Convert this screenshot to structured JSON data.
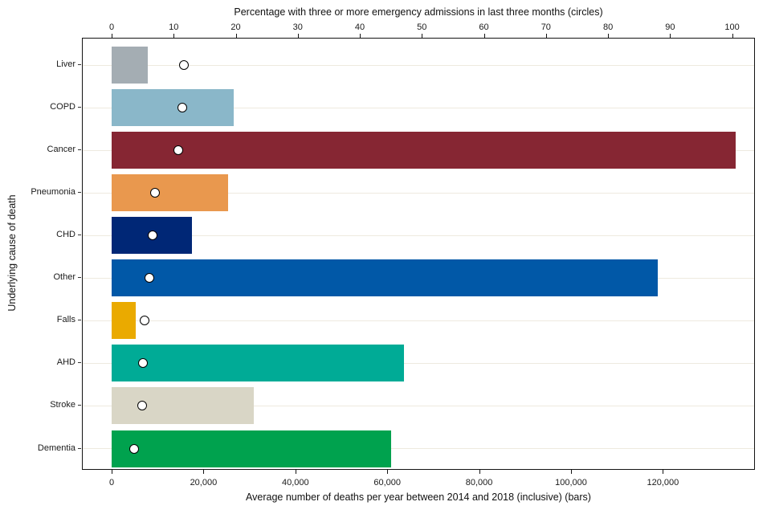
{
  "chart_data": {
    "type": "bar",
    "orientation": "horizontal",
    "categories": [
      "Liver",
      "COPD",
      "Cancer",
      "Pneumonia",
      "CHD",
      "Other",
      "Falls",
      "AHD",
      "Stroke",
      "Dementia"
    ],
    "series": [
      {
        "name": "Average number of deaths per year between 2014 and 2018 (inclusive)",
        "marker": "bar",
        "axis": "bottom",
        "values": [
          7900,
          26500,
          135800,
          25400,
          17500,
          118800,
          5300,
          63700,
          31000,
          60900
        ]
      },
      {
        "name": "Percentage with three or more emergency admissions in last three months",
        "marker": "circle",
        "axis": "top",
        "values": [
          11.7,
          11.4,
          10.7,
          7.0,
          6.6,
          6.1,
          5.3,
          5.1,
          4.9,
          3.6
        ]
      }
    ],
    "bar_colors": [
      "#a4adb3",
      "#8ab7c9",
      "#862633",
      "#e9984e",
      "#002776",
      "#0158a7",
      "#eaaa00",
      "#00ab96",
      "#d9d6c6",
      "#00a24e"
    ],
    "point_style": {
      "fill": "#ffffff",
      "stroke": "#000000"
    },
    "axes": {
      "top": {
        "title": "Percentage with three or more emergency admissions in last three months (circles)",
        "tick_values": [
          0,
          10,
          20,
          30,
          40,
          50,
          60,
          70,
          80,
          90,
          100
        ],
        "tick_labels": [
          "0",
          "10",
          "20",
          "30",
          "40",
          "50",
          "60",
          "70",
          "80",
          "90",
          "100"
        ],
        "range": [
          0,
          103.5
        ]
      },
      "bottom": {
        "title": "Average number of deaths per year between 2014 and 2018 (inclusive) (bars)",
        "tick_values": [
          0,
          20000,
          40000,
          60000,
          80000,
          100000,
          120000
        ],
        "tick_labels": [
          "0",
          "20,000",
          "40,000",
          "60,000",
          "80,000",
          "100,000",
          "120,000"
        ],
        "range": [
          0,
          139900
        ]
      },
      "left": {
        "title": "Underlying cause of death"
      }
    },
    "grid": {
      "horizontal": true,
      "vertical": false,
      "color": "#eeeadf"
    },
    "background": "#ffffff",
    "border_color": "#141414"
  }
}
